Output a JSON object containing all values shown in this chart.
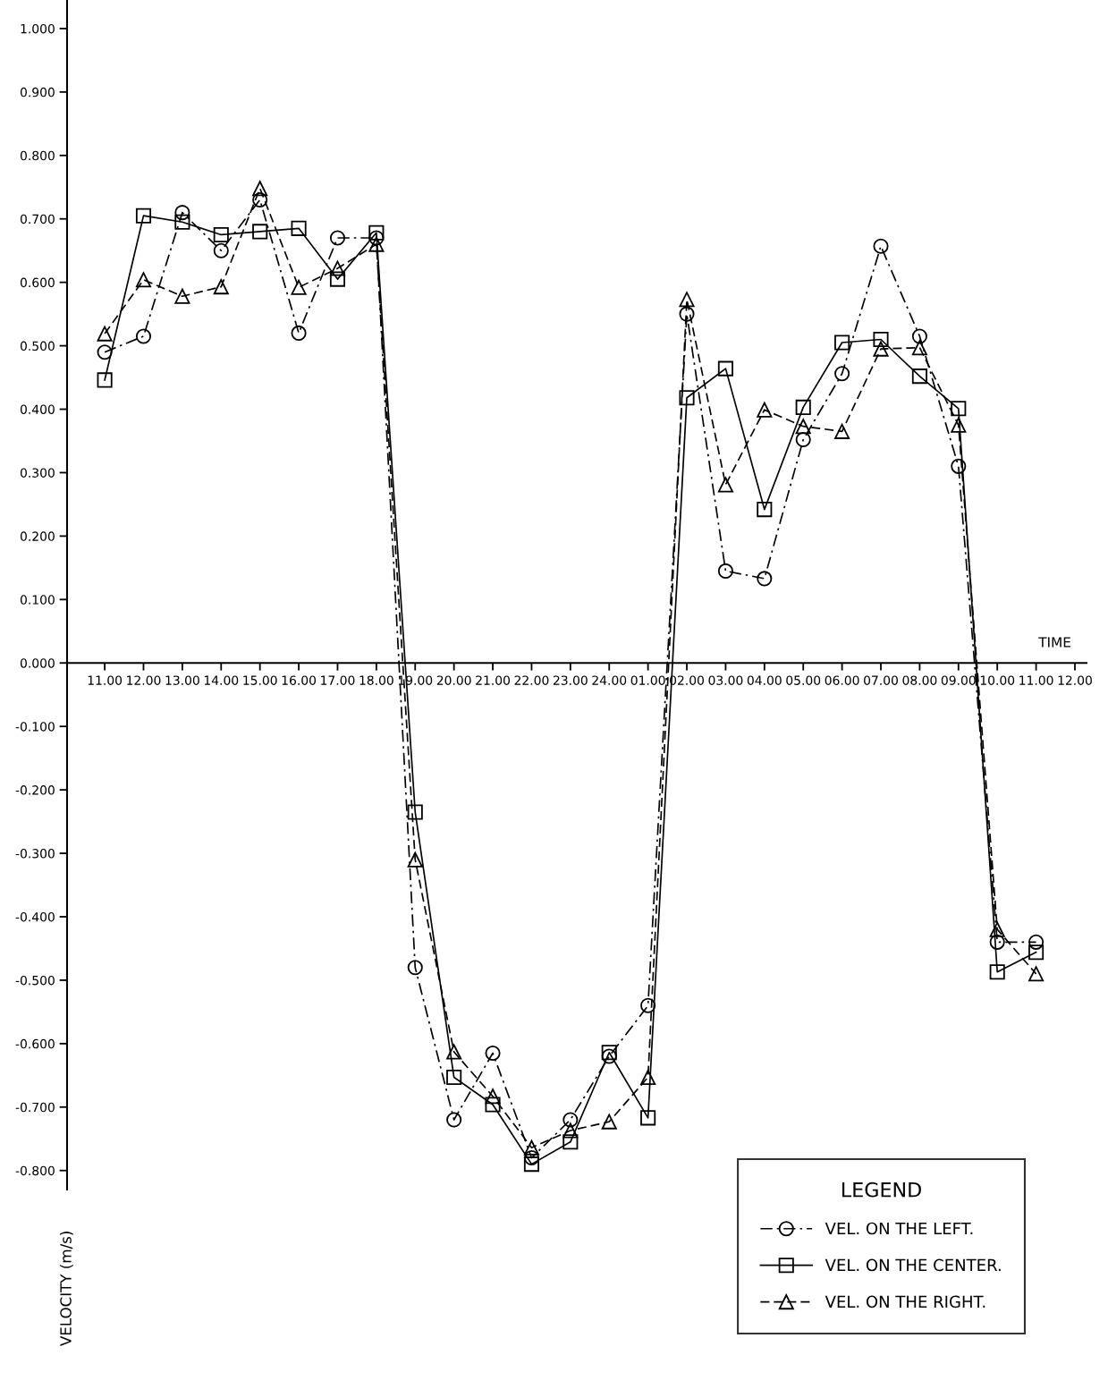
{
  "chart_data": {
    "type": "line",
    "xlabel": "TIME",
    "ylabel": "VELOCITY (m/s)",
    "legend_title": "LEGEND",
    "categories": [
      "11.00",
      "12.00",
      "13.00",
      "14.00",
      "15.00",
      "16.00",
      "17.00",
      "18.00",
      "19.00",
      "20.00",
      "21.00",
      "22.00",
      "23.00",
      "24.00",
      "01.00",
      "02.00",
      "03.00",
      "04.00",
      "05.00",
      "06.00",
      "07.00",
      "08.00",
      "09.00",
      "10.00",
      "11.00",
      "12.00"
    ],
    "series": [
      {
        "name": "VEL. ON THE LEFT.",
        "color": "#000000",
        "marker": "circle",
        "line_style": "dashdot",
        "values": [
          0.49,
          0.515,
          0.71,
          0.65,
          0.73,
          0.52,
          0.67,
          0.67,
          -0.48,
          -0.72,
          -0.615,
          -0.78,
          -0.72,
          -0.62,
          -0.54,
          0.55,
          0.145,
          0.133,
          0.352,
          0.456,
          0.657,
          0.515,
          0.31,
          -0.44,
          -0.44,
          null
        ]
      },
      {
        "name": "VEL. ON THE CENTER.",
        "color": "#000000",
        "marker": "square",
        "line_style": "solid",
        "values": [
          0.446,
          0.705,
          0.695,
          0.675,
          0.68,
          0.685,
          0.605,
          0.678,
          -0.235,
          -0.653,
          -0.696,
          -0.79,
          -0.755,
          -0.614,
          -0.717,
          0.418,
          0.464,
          0.242,
          0.403,
          0.505,
          0.51,
          0.452,
          0.401,
          -0.487,
          -0.456,
          null
        ]
      },
      {
        "name": "VEL. ON THE RIGHT.",
        "color": "#000000",
        "marker": "triangle",
        "line_style": "dashed",
        "values": [
          0.519,
          0.604,
          0.578,
          0.593,
          0.748,
          0.592,
          0.622,
          0.66,
          -0.31,
          -0.613,
          -0.683,
          -0.764,
          -0.737,
          -0.723,
          -0.653,
          0.573,
          0.281,
          0.399,
          0.373,
          0.365,
          0.495,
          0.497,
          0.375,
          -0.42,
          -0.49,
          null
        ]
      }
    ],
    "ylim": [
      -0.83,
      1.045
    ],
    "yticks": [
      {
        "value": 1.0,
        "label": "1.000"
      },
      {
        "value": 0.9,
        "label": "0.900"
      },
      {
        "value": 0.8,
        "label": "0.800"
      },
      {
        "value": 0.7,
        "label": "0.700"
      },
      {
        "value": 0.6,
        "label": "0.600"
      },
      {
        "value": 0.5,
        "label": "0.500"
      },
      {
        "value": 0.4,
        "label": "0.400"
      },
      {
        "value": 0.3,
        "label": "0.300"
      },
      {
        "value": 0.2,
        "label": "0.200"
      },
      {
        "value": 0.1,
        "label": "0.100"
      },
      {
        "value": 0.0,
        "label": "0.000"
      },
      {
        "value": -0.1,
        "label": "-0.100"
      },
      {
        "value": -0.2,
        "label": "-0.200"
      },
      {
        "value": -0.3,
        "label": "-0.300"
      },
      {
        "value": -0.4,
        "label": "-0.400"
      },
      {
        "value": -0.5,
        "label": "-0.500"
      },
      {
        "value": -0.6,
        "label": "-0.600"
      },
      {
        "value": -0.7,
        "label": "-0.700"
      },
      {
        "value": -0.8,
        "label": "-0.800"
      }
    ],
    "grid": false,
    "legend": "bottom right"
  }
}
